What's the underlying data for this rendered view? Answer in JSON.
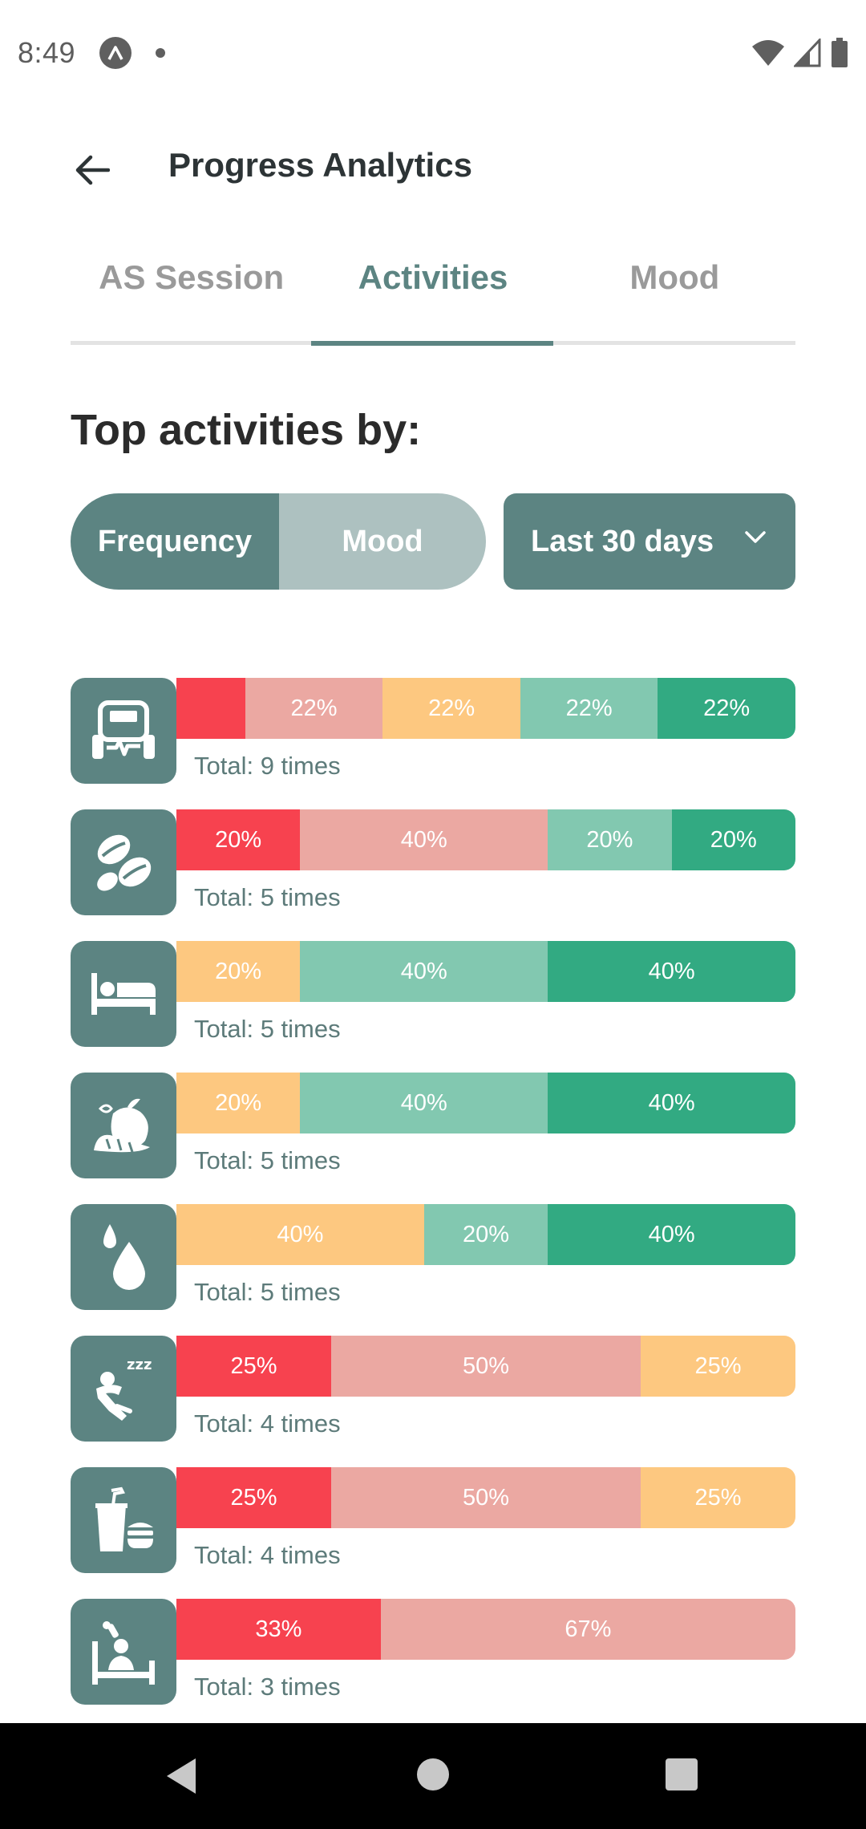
{
  "status_bar": {
    "time": "8:49"
  },
  "app_bar": {
    "title": "Progress Analytics"
  },
  "tabs": [
    {
      "label": "AS Session",
      "active": false
    },
    {
      "label": "Activities",
      "active": true
    },
    {
      "label": "Mood",
      "active": false
    }
  ],
  "section_title": "Top activities by:",
  "toggle": {
    "frequency_label": "Frequency",
    "mood_label": "Mood",
    "selected": "Frequency"
  },
  "range_dropdown": {
    "value": "Last 30 days"
  },
  "colors": {
    "accent": "#5c8482",
    "awful": "#f7424f",
    "bad": "#eba8a2",
    "meh": "#fdc880",
    "good": "#82c8b0",
    "great": "#32aa82"
  },
  "activities": [
    {
      "icon": "fitness-icon",
      "total_label": "Total: 9 times",
      "segments": [
        {
          "mood": "awful",
          "percent": 11,
          "label": ""
        },
        {
          "mood": "bad",
          "percent": 22,
          "label": "22%"
        },
        {
          "mood": "meh",
          "percent": 22,
          "label": "22%"
        },
        {
          "mood": "good",
          "percent": 22,
          "label": "22%"
        },
        {
          "mood": "great",
          "percent": 22,
          "label": "22%"
        }
      ]
    },
    {
      "icon": "coffee-beans-icon",
      "total_label": "Total: 5 times",
      "segments": [
        {
          "mood": "awful",
          "percent": 20,
          "label": "20%"
        },
        {
          "mood": "bad",
          "percent": 40,
          "label": "40%"
        },
        {
          "mood": "good",
          "percent": 20,
          "label": "20%"
        },
        {
          "mood": "great",
          "percent": 20,
          "label": "20%"
        }
      ]
    },
    {
      "icon": "bed-icon",
      "total_label": "Total: 5 times",
      "segments": [
        {
          "mood": "meh",
          "percent": 20,
          "label": "20%"
        },
        {
          "mood": "good",
          "percent": 40,
          "label": "40%"
        },
        {
          "mood": "great",
          "percent": 40,
          "label": "40%"
        }
      ]
    },
    {
      "icon": "healthy-food-icon",
      "total_label": "Total: 5 times",
      "segments": [
        {
          "mood": "meh",
          "percent": 20,
          "label": "20%"
        },
        {
          "mood": "good",
          "percent": 40,
          "label": "40%"
        },
        {
          "mood": "great",
          "percent": 40,
          "label": "40%"
        }
      ]
    },
    {
      "icon": "water-drops-icon",
      "total_label": "Total: 5 times",
      "segments": [
        {
          "mood": "meh",
          "percent": 40,
          "label": "40%"
        },
        {
          "mood": "good",
          "percent": 20,
          "label": "20%"
        },
        {
          "mood": "great",
          "percent": 40,
          "label": "40%"
        }
      ]
    },
    {
      "icon": "nap-icon",
      "total_label": "Total: 4 times",
      "segments": [
        {
          "mood": "awful",
          "percent": 25,
          "label": "25%"
        },
        {
          "mood": "bad",
          "percent": 50,
          "label": "50%"
        },
        {
          "mood": "meh",
          "percent": 25,
          "label": "25%"
        }
      ]
    },
    {
      "icon": "fast-food-icon",
      "total_label": "Total: 4 times",
      "segments": [
        {
          "mood": "awful",
          "percent": 25,
          "label": "25%"
        },
        {
          "mood": "bad",
          "percent": 50,
          "label": "50%"
        },
        {
          "mood": "meh",
          "percent": 25,
          "label": "25%"
        }
      ]
    },
    {
      "icon": "sick-in-bed-icon",
      "total_label": "Total: 3 times",
      "segments": [
        {
          "mood": "awful",
          "percent": 33,
          "label": "33%"
        },
        {
          "mood": "bad",
          "percent": 67,
          "label": "67%"
        }
      ]
    }
  ]
}
